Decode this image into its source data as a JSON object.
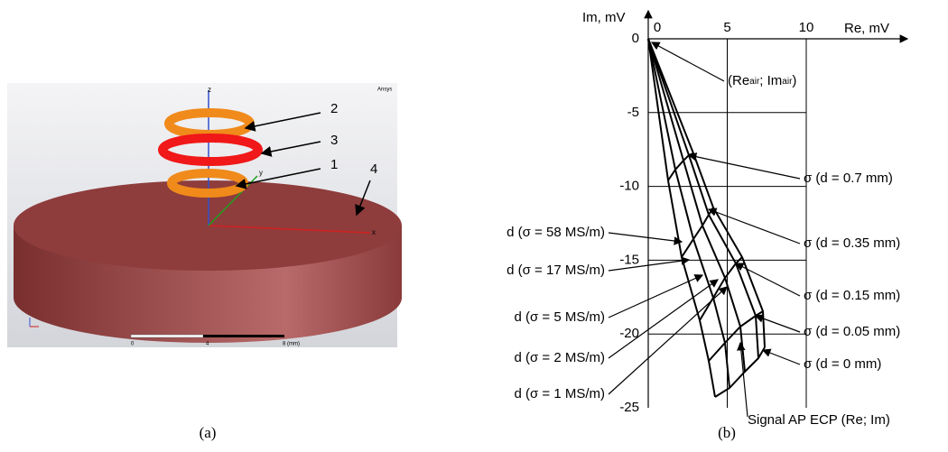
{
  "panel_a": {
    "caption": "(a)",
    "brand": "Ansys",
    "axis_labels": [
      "z",
      "y",
      "x"
    ],
    "scale_labels": [
      "0",
      "4",
      "8 (mm)"
    ],
    "callouts": [
      "2",
      "3",
      "1",
      "4"
    ]
  },
  "panel_b": {
    "caption": "(b)",
    "x_label": "Re, mV",
    "y_label": "Im, mV",
    "xticks": [
      0,
      5,
      10
    ],
    "yticks": [
      0,
      -5,
      -10,
      -15,
      -20,
      -25
    ],
    "air_label": [
      "(Re",
      "air",
      "; Im",
      "air",
      ")"
    ],
    "left_labels": [
      "d (σ = 58 MS/m)",
      "d (σ = 17 MS/m)",
      "d (σ = 5 MS/m)",
      "d (σ = 2 MS/m)",
      "d (σ = 1 MS/m)"
    ],
    "right_labels": [
      "σ (d = 0.7 mm)",
      "σ (d = 0.35 mm)",
      "σ (d = 0.15 mm)",
      "σ (d = 0.05 mm)",
      "σ (d = 0 mm)"
    ],
    "signal_label": "Signal AP ECP (Re; Im)"
  }
}
